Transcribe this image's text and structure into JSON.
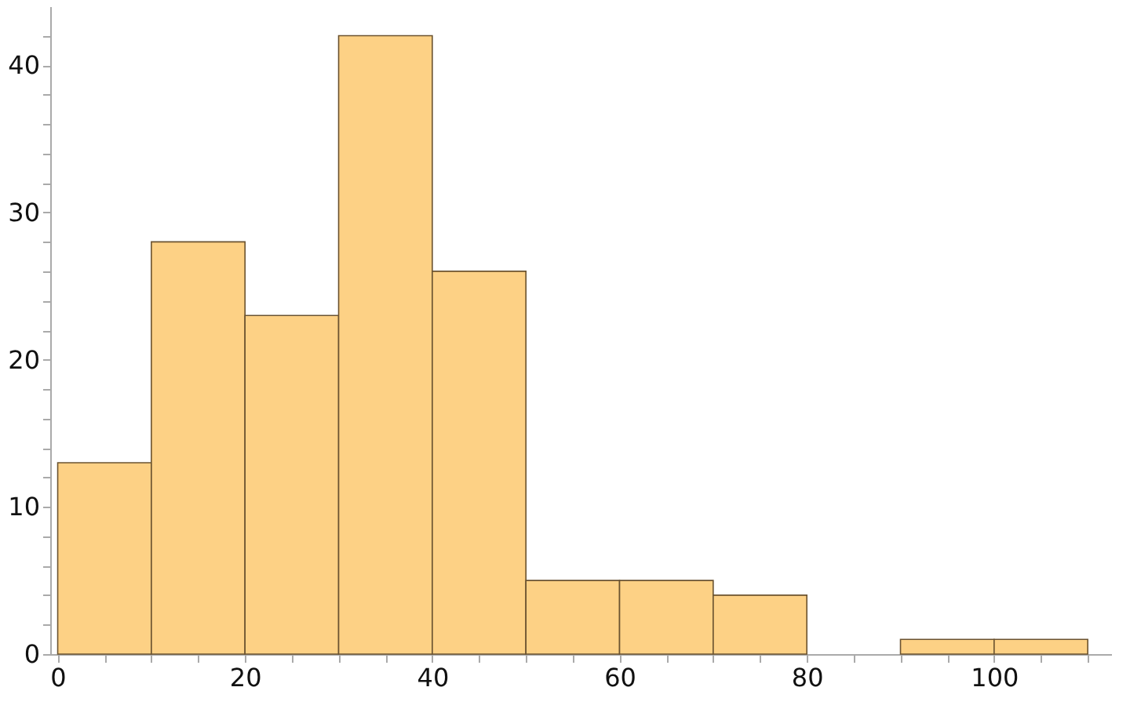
{
  "chart_data": {
    "type": "histogram",
    "color": "#fdd185",
    "bins": [
      0,
      10,
      20,
      30,
      40,
      50,
      60,
      70,
      80,
      90,
      100,
      110
    ],
    "values": [
      13,
      28,
      23,
      42,
      26,
      5,
      5,
      4,
      0,
      1,
      1
    ],
    "xlim": [
      -0.8,
      112.5
    ],
    "ylim": [
      0,
      44
    ],
    "xticks": [
      0,
      {
        "value": 5,
        "label": null
      },
      {
        "value": 10,
        "label": null
      },
      {
        "value": 15,
        "label": null
      },
      20,
      {
        "value": 25,
        "label": null
      },
      {
        "value": 30,
        "label": null
      },
      {
        "value": 35,
        "label": null
      },
      40,
      {
        "value": 45,
        "label": null
      },
      {
        "value": 50,
        "label": null
      },
      {
        "value": 55,
        "label": null
      },
      60,
      {
        "value": 65,
        "label": null
      },
      {
        "value": 70,
        "label": null
      },
      {
        "value": 75,
        "label": null
      },
      80,
      {
        "value": 85,
        "label": null
      },
      {
        "value": 90,
        "label": null
      },
      {
        "value": 95,
        "label": null
      },
      100,
      {
        "value": 105,
        "label": null
      },
      {
        "value": 110,
        "label": null
      }
    ],
    "yticks": [
      0,
      {
        "value": 2,
        "label": null
      },
      {
        "value": 4,
        "label": null
      },
      {
        "value": 6,
        "label": null
      },
      {
        "value": 8,
        "label": null
      },
      10,
      {
        "value": 12,
        "label": null
      },
      {
        "value": 14,
        "label": null
      },
      {
        "value": 16,
        "label": null
      },
      {
        "value": 18,
        "label": null
      },
      20,
      {
        "value": 22,
        "label": null
      },
      {
        "value": 24,
        "label": null
      },
      {
        "value": 26,
        "label": null
      },
      {
        "value": 28,
        "label": null
      },
      30,
      {
        "value": 32,
        "label": null
      },
      {
        "value": 34,
        "label": null
      },
      {
        "value": 36,
        "label": null
      },
      {
        "value": 38,
        "label": null
      },
      40,
      {
        "value": 42,
        "label": null
      }
    ],
    "grid": false
  }
}
